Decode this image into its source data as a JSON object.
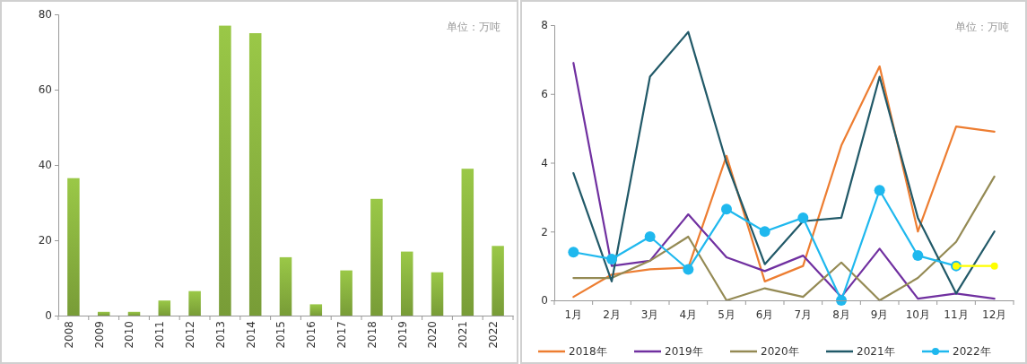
{
  "chart_data": [
    {
      "type": "bar",
      "annotations": [
        "单位：万吨"
      ],
      "categories": [
        "2008",
        "2009",
        "2010",
        "2011",
        "2012",
        "2013",
        "2014",
        "2015",
        "2016",
        "2017",
        "2018",
        "2019",
        "2020",
        "2021",
        "2022"
      ],
      "values": [
        36.5,
        1,
        1,
        4,
        6.5,
        77,
        75,
        15.5,
        3,
        12,
        31,
        17,
        11.5,
        39,
        18.5
      ],
      "color": "#8ab440",
      "ylim": [
        0,
        80
      ],
      "yticks": [
        0,
        20,
        40,
        60,
        80
      ]
    },
    {
      "type": "line",
      "annotations": [
        "单位：万吨"
      ],
      "categories": [
        "1月",
        "2月",
        "3月",
        "4月",
        "5月",
        "6月",
        "7月",
        "8月",
        "9月",
        "10月",
        "11月",
        "12月"
      ],
      "ylim": [
        0,
        8
      ],
      "yticks": [
        0,
        2,
        4,
        6,
        8
      ],
      "legend": "bottom",
      "series": [
        {
          "name": "2018年",
          "color": "#ed7d31",
          "values": [
            0.1,
            0.75,
            0.9,
            0.95,
            4.2,
            0.55,
            1.0,
            4.5,
            6.8,
            2.0,
            5.05,
            4.9
          ]
        },
        {
          "name": "2019年",
          "color": "#7030a0",
          "values": [
            6.9,
            1.0,
            1.15,
            2.5,
            1.25,
            0.85,
            1.3,
            0.1,
            1.5,
            0.05,
            0.2,
            0.05
          ]
        },
        {
          "name": "2020年",
          "color": "#948a54",
          "values": [
            0.65,
            0.65,
            1.15,
            1.85,
            0.0,
            0.35,
            0.1,
            1.1,
            0.0,
            0.65,
            1.7,
            3.6
          ]
        },
        {
          "name": "2021年",
          "color": "#215968",
          "values": [
            3.7,
            0.55,
            6.5,
            7.8,
            4.0,
            1.05,
            2.3,
            2.4,
            6.5,
            2.4,
            0.2,
            2.0
          ]
        },
        {
          "name": "2022年",
          "color": "#1fb8ee",
          "marker": "circle",
          "values": [
            1.4,
            1.2,
            1.85,
            0.9,
            2.65,
            2.0,
            2.4,
            0.0,
            3.2,
            1.3,
            1.0,
            null
          ]
        },
        {
          "color": "#ffff00",
          "marker": "circle",
          "values": [
            null,
            null,
            null,
            null,
            null,
            null,
            null,
            null,
            null,
            null,
            1.0,
            1.0
          ]
        }
      ]
    }
  ]
}
